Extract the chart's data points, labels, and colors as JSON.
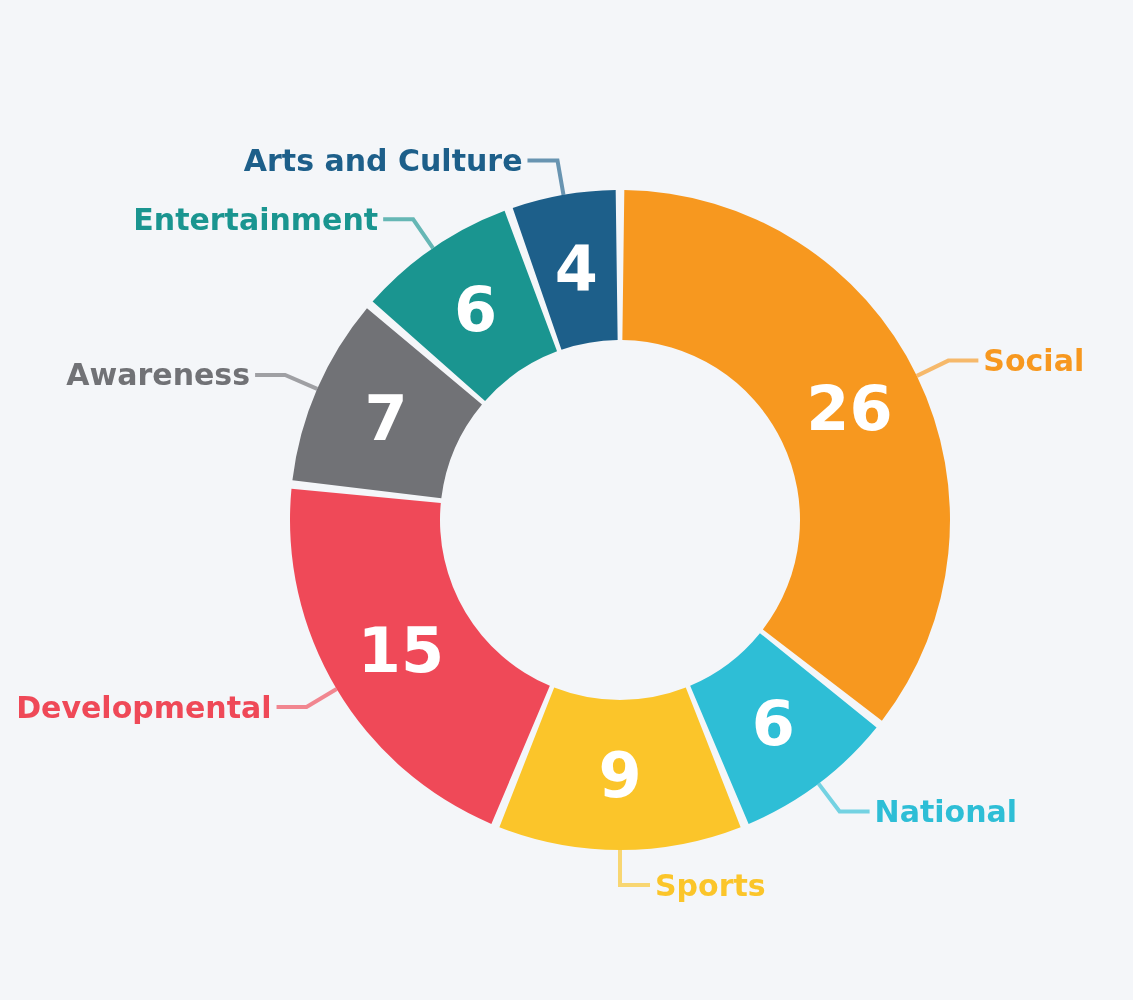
{
  "chart_data": {
    "type": "donut",
    "categories": [
      "Social",
      "National",
      "Sports",
      "Developmental",
      "Awareness",
      "Entertainment",
      "Arts and Culture"
    ],
    "values": [
      26,
      6,
      9,
      15,
      7,
      6,
      4
    ],
    "colors": [
      "#f7981f",
      "#2ebed6",
      "#fbc52a",
      "#ef4958",
      "#717276",
      "#1a9590",
      "#1d5f8a"
    ],
    "data_labels": true,
    "legend": false
  }
}
